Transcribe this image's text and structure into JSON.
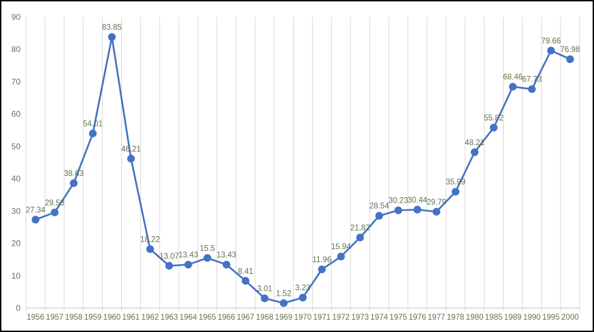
{
  "chart_data": {
    "type": "line",
    "title": "",
    "xlabel": "",
    "ylabel": "",
    "categories": [
      "1956",
      "1957",
      "1958",
      "1959",
      "1960",
      "1961",
      "1962",
      "1963",
      "1964",
      "1965",
      "1966",
      "1967",
      "1968",
      "1969",
      "1970",
      "1971",
      "1972",
      "1973",
      "1974",
      "1975",
      "1976",
      "1977",
      "1978",
      "1980",
      "1985",
      "1989",
      "1990",
      "1995",
      "2000"
    ],
    "values": [
      27.34,
      29.58,
      38.63,
      54.01,
      83.85,
      46.21,
      18.22,
      13.07,
      13.43,
      15.5,
      13.43,
      8.41,
      3.01,
      1.52,
      3.23,
      11.96,
      15.94,
      21.82,
      28.54,
      30.23,
      30.44,
      29.79,
      35.99,
      48.21,
      55.82,
      68.46,
      67.73,
      79.66,
      76.98
    ],
    "data_labels": [
      "27.34",
      "29.58",
      "38.63",
      "54.01",
      "83.85",
      "46.21",
      "18.22",
      "13.07",
      "13.43",
      "15.5",
      "13.43",
      "8.41",
      "3.01",
      "1.52",
      "3.23",
      "11.96",
      "15.94",
      "21.82",
      "28.54",
      "30.23",
      "30.44",
      "29.79",
      "35.99",
      "48.21",
      "55.82",
      "68.46",
      "67.73",
      "79.66",
      "76.98"
    ],
    "ylim": [
      0,
      90
    ],
    "ytick_interval": 10,
    "yticks": [
      "0",
      "10",
      "20",
      "30",
      "40",
      "50",
      "60",
      "70",
      "80",
      "90"
    ],
    "grid": "vertical-only",
    "legend": "none",
    "marker": "circle",
    "colors": {
      "line": "#4472c4",
      "marker": "#4472c4",
      "data_label": "#5f7450",
      "axis_label": "#5f7450",
      "gridline": "#d9d9d9",
      "axis_line": "#c6c6c6",
      "background": "#ffffff",
      "border": "#000000"
    }
  }
}
